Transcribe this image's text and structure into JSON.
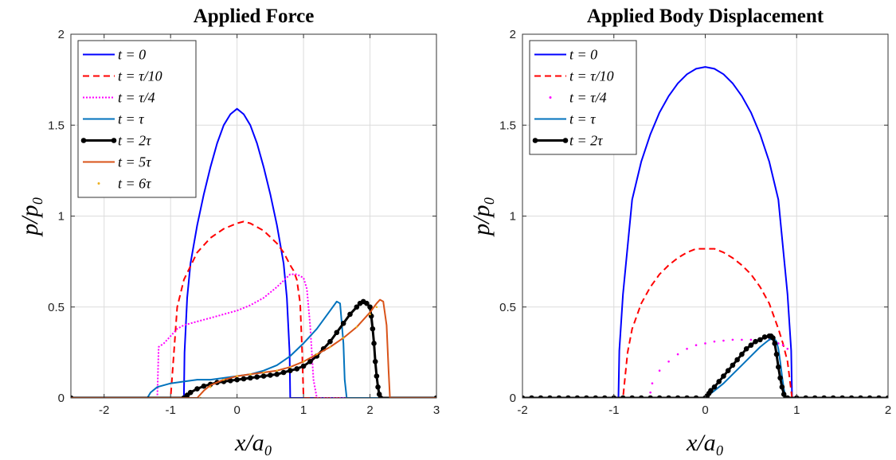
{
  "chart_data": [
    {
      "type": "line",
      "title": "Applied Force",
      "xlabel": "x/a₀",
      "ylabel": "p/p₀",
      "xlim": [
        -2.5,
        3
      ],
      "ylim": [
        0,
        2
      ],
      "xticks": [
        "-2",
        "-1",
        "0",
        "1",
        "2",
        "3"
      ],
      "xtick_values": [
        -2,
        -1,
        0,
        1,
        2,
        3
      ],
      "yticks": [
        "0",
        "0.5",
        "1",
        "1.5",
        "2"
      ],
      "ytick_values": [
        0,
        0.5,
        1,
        1.5,
        2
      ],
      "grid": true,
      "legend_position": "top-left",
      "series": [
        {
          "name": "t = 0",
          "color": "#0000ff",
          "style": "solid",
          "x": [
            -2.5,
            -0.8,
            -0.79,
            -0.75,
            -0.7,
            -0.6,
            -0.5,
            -0.4,
            -0.3,
            -0.2,
            -0.1,
            0,
            0.1,
            0.2,
            0.3,
            0.4,
            0.5,
            0.6,
            0.7,
            0.75,
            0.79,
            0.8,
            3
          ],
          "y": [
            0,
            0,
            0.25,
            0.55,
            0.74,
            0.95,
            1.12,
            1.27,
            1.4,
            1.5,
            1.56,
            1.59,
            1.56,
            1.5,
            1.4,
            1.27,
            1.12,
            0.95,
            0.74,
            0.55,
            0.25,
            0,
            0
          ]
        },
        {
          "name": "t = τ/10",
          "color": "#ff0000",
          "style": "dashed",
          "x": [
            -2.5,
            -1.0,
            -0.98,
            -0.9,
            -0.8,
            -0.6,
            -0.4,
            -0.2,
            0,
            0.1,
            0.2,
            0.4,
            0.6,
            0.7,
            0.8,
            0.85,
            0.9,
            0.95,
            0.98,
            1.0,
            3
          ],
          "y": [
            0,
            0,
            0.1,
            0.5,
            0.65,
            0.8,
            0.88,
            0.93,
            0.96,
            0.97,
            0.96,
            0.92,
            0.85,
            0.8,
            0.73,
            0.7,
            0.65,
            0.52,
            0.25,
            0,
            0
          ]
        },
        {
          "name": "t = τ/4",
          "color": "#ff00ff",
          "style": "dotted",
          "x": [
            -2.5,
            -1.2,
            -1.18,
            -1.1,
            -1.0,
            -0.9,
            -0.8,
            -0.6,
            -0.4,
            -0.2,
            0,
            0.2,
            0.4,
            0.6,
            0.8,
            0.9,
            1.0,
            1.05,
            1.1,
            1.15,
            1.2,
            3
          ],
          "y": [
            0,
            0,
            0.28,
            0.3,
            0.34,
            0.38,
            0.4,
            0.42,
            0.44,
            0.46,
            0.48,
            0.51,
            0.55,
            0.61,
            0.68,
            0.68,
            0.66,
            0.6,
            0.4,
            0.1,
            0,
            0
          ]
        },
        {
          "name": "t = τ",
          "color": "#0072bd",
          "style": "solid",
          "x": [
            -2.5,
            -1.35,
            -1.3,
            -1.2,
            -1.0,
            -0.8,
            -0.6,
            -0.4,
            -0.2,
            0,
            0.2,
            0.4,
            0.6,
            0.8,
            1.0,
            1.2,
            1.4,
            1.5,
            1.55,
            1.6,
            1.62,
            1.65,
            3
          ],
          "y": [
            0,
            0,
            0.03,
            0.06,
            0.08,
            0.09,
            0.1,
            0.1,
            0.11,
            0.12,
            0.13,
            0.15,
            0.18,
            0.23,
            0.3,
            0.38,
            0.48,
            0.53,
            0.52,
            0.3,
            0.1,
            0,
            0
          ]
        },
        {
          "name": "t = 2τ",
          "color": "#000000",
          "style": "solid-marker",
          "x": [
            -2.5,
            -0.8,
            -0.75,
            -0.7,
            -0.6,
            -0.5,
            -0.4,
            -0.3,
            -0.2,
            -0.1,
            0,
            0.1,
            0.2,
            0.3,
            0.4,
            0.5,
            0.6,
            0.7,
            0.8,
            0.9,
            1.0,
            1.1,
            1.2,
            1.3,
            1.4,
            1.5,
            1.6,
            1.7,
            1.8,
            1.85,
            1.9,
            1.95,
            2.0,
            2.02,
            2.04,
            2.06,
            2.08,
            2.1,
            2.12,
            2.14,
            2.16,
            3
          ],
          "y": [
            0,
            0,
            0.015,
            0.03,
            0.05,
            0.065,
            0.075,
            0.085,
            0.09,
            0.095,
            0.1,
            0.105,
            0.11,
            0.115,
            0.12,
            0.125,
            0.13,
            0.14,
            0.15,
            0.16,
            0.175,
            0.2,
            0.23,
            0.27,
            0.31,
            0.36,
            0.41,
            0.46,
            0.5,
            0.52,
            0.53,
            0.52,
            0.5,
            0.45,
            0.38,
            0.3,
            0.2,
            0.12,
            0.06,
            0.02,
            0,
            0
          ]
        },
        {
          "name": "t = 5τ",
          "color": "#d95319",
          "style": "solid",
          "x": [
            -2.5,
            -0.6,
            -0.5,
            -0.4,
            -0.2,
            0,
            0.2,
            0.4,
            0.6,
            0.8,
            1.0,
            1.2,
            1.4,
            1.6,
            1.8,
            2.0,
            2.1,
            2.15,
            2.2,
            2.25,
            2.28,
            2.3,
            3
          ],
          "y": [
            0,
            0,
            0.04,
            0.07,
            0.1,
            0.12,
            0.13,
            0.14,
            0.15,
            0.17,
            0.2,
            0.24,
            0.28,
            0.33,
            0.39,
            0.47,
            0.52,
            0.54,
            0.53,
            0.4,
            0.15,
            0,
            0
          ]
        },
        {
          "name": "t = 6τ",
          "color": "#edb120",
          "style": "dots",
          "x": [
            -0.55,
            -0.4,
            -0.2,
            0,
            0.2,
            0.4,
            0.6,
            0.8,
            1.0,
            1.2,
            1.4,
            1.6,
            1.8,
            2.0,
            2.1
          ],
          "y": [
            0,
            0.06,
            0.1,
            0.12,
            0.13,
            0.14,
            0.15,
            0.17,
            0.2,
            0.24,
            0.28,
            0.33,
            0.39,
            0.46,
            0.5
          ]
        }
      ]
    },
    {
      "type": "line",
      "title": "Applied Body Displacement",
      "xlabel": "x/a₀",
      "ylabel": "p/p₀",
      "xlim": [
        -2,
        2
      ],
      "ylim": [
        0,
        2
      ],
      "xticks": [
        "-2",
        "-1",
        "0",
        "1",
        "2"
      ],
      "xtick_values": [
        -2,
        -1,
        0,
        1,
        2
      ],
      "yticks": [
        "0",
        "0.5",
        "1",
        "1.5",
        "2"
      ],
      "ytick_values": [
        0,
        0.5,
        1,
        1.5,
        2
      ],
      "grid": true,
      "legend_position": "top-left",
      "series": [
        {
          "name": "t = 0",
          "color": "#0000ff",
          "style": "solid",
          "x": [
            -2,
            -0.95,
            -0.94,
            -0.9,
            -0.8,
            -0.7,
            -0.6,
            -0.5,
            -0.4,
            -0.3,
            -0.2,
            -0.1,
            0,
            0.1,
            0.2,
            0.3,
            0.4,
            0.5,
            0.6,
            0.7,
            0.8,
            0.9,
            0.94,
            0.95,
            2
          ],
          "y": [
            0,
            0,
            0.26,
            0.57,
            1.09,
            1.3,
            1.45,
            1.57,
            1.66,
            1.73,
            1.78,
            1.81,
            1.82,
            1.81,
            1.78,
            1.73,
            1.66,
            1.57,
            1.45,
            1.3,
            1.09,
            0.57,
            0.26,
            0,
            0
          ]
        },
        {
          "name": "t = τ/10",
          "color": "#ff0000",
          "style": "dashed",
          "x": [
            -2,
            -0.9,
            -0.88,
            -0.85,
            -0.8,
            -0.7,
            -0.6,
            -0.5,
            -0.4,
            -0.3,
            -0.2,
            -0.1,
            0,
            0.1,
            0.2,
            0.3,
            0.4,
            0.5,
            0.6,
            0.7,
            0.8,
            0.85,
            0.9,
            0.93,
            0.95,
            2
          ],
          "y": [
            0,
            0,
            0.1,
            0.25,
            0.38,
            0.52,
            0.61,
            0.68,
            0.73,
            0.77,
            0.8,
            0.82,
            0.82,
            0.82,
            0.8,
            0.77,
            0.73,
            0.68,
            0.61,
            0.52,
            0.38,
            0.3,
            0.2,
            0.08,
            0,
            0
          ]
        },
        {
          "name": "t = τ/4",
          "color": "#ff00ff",
          "style": "dots",
          "x": [
            -0.6,
            -0.58,
            -0.5,
            -0.4,
            -0.3,
            -0.2,
            -0.1,
            0,
            0.1,
            0.2,
            0.3,
            0.4,
            0.5,
            0.6,
            0.7,
            0.75,
            0.8,
            0.85,
            0.9
          ],
          "y": [
            0.03,
            0.08,
            0.15,
            0.2,
            0.24,
            0.27,
            0.29,
            0.3,
            0.31,
            0.315,
            0.32,
            0.32,
            0.32,
            0.32,
            0.32,
            0.31,
            0.3,
            0.29,
            0.27
          ]
        },
        {
          "name": "t = τ",
          "color": "#0072bd",
          "style": "solid",
          "x": [
            0,
            0.05,
            0.1,
            0.2,
            0.3,
            0.4,
            0.5,
            0.6,
            0.65,
            0.7,
            0.75,
            0.78,
            0.8,
            0.82,
            0.84,
            0.86,
            0.88
          ],
          "y": [
            0,
            0.02,
            0.04,
            0.08,
            0.13,
            0.18,
            0.23,
            0.28,
            0.3,
            0.32,
            0.33,
            0.31,
            0.27,
            0.2,
            0.12,
            0.05,
            0
          ]
        },
        {
          "name": "t = 2τ",
          "color": "#000000",
          "style": "solid-marker",
          "x": [
            -2,
            -1.9,
            -1.8,
            -1.7,
            -1.6,
            -1.5,
            -1.4,
            -1.3,
            -1.2,
            -1.1,
            -1.0,
            -0.9,
            -0.8,
            -0.7,
            -0.6,
            -0.5,
            -0.4,
            -0.3,
            -0.2,
            -0.1,
            0,
            0.02,
            0.04,
            0.06,
            0.1,
            0.15,
            0.2,
            0.25,
            0.3,
            0.35,
            0.4,
            0.45,
            0.5,
            0.55,
            0.6,
            0.65,
            0.7,
            0.72,
            0.74,
            0.76,
            0.78,
            0.8,
            0.82,
            0.84,
            0.86,
            0.88,
            0.9,
            1.0,
            1.1,
            1.2,
            1.3,
            1.4,
            1.5,
            1.6,
            1.7,
            1.8,
            1.9,
            2.0
          ],
          "y": [
            0,
            0,
            0,
            0,
            0,
            0,
            0,
            0,
            0,
            0,
            0,
            0,
            0,
            0,
            0,
            0,
            0,
            0,
            0,
            0,
            0,
            0.01,
            0.025,
            0.04,
            0.06,
            0.09,
            0.12,
            0.15,
            0.18,
            0.21,
            0.24,
            0.27,
            0.29,
            0.31,
            0.32,
            0.335,
            0.34,
            0.34,
            0.33,
            0.3,
            0.24,
            0.17,
            0.11,
            0.06,
            0.02,
            0,
            0,
            0,
            0,
            0,
            0,
            0,
            0,
            0,
            0,
            0,
            0,
            0
          ]
        }
      ]
    }
  ]
}
